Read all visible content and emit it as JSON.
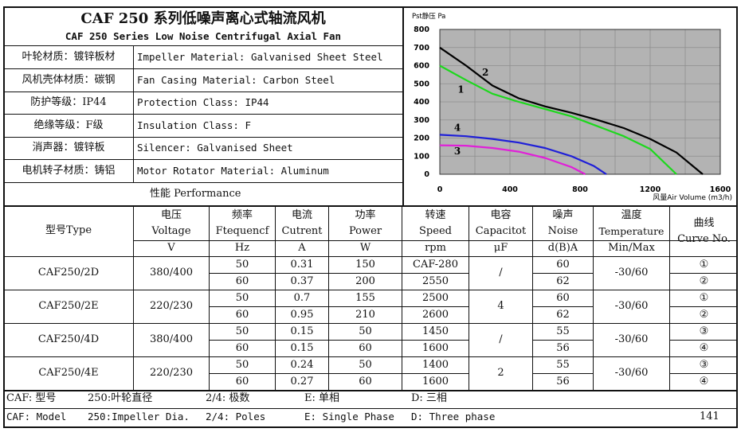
{
  "header": {
    "title_cn": "CAF 250 系列低噪声离心式轴流风机",
    "title_en": "CAF 250 Series Low Noise Centrifugal Axial Fan"
  },
  "specs": [
    {
      "cn": "叶轮材质：镀锌板材",
      "en": "Impeller Material: Galvanised Sheet Steel"
    },
    {
      "cn": "风机壳体材质：碳钢",
      "en": "Fan Casing Material: Carbon Steel"
    },
    {
      "cn": "防护等级：IP44",
      "en": "Protection Class: IP44"
    },
    {
      "cn": "绝缘等级：F级",
      "en": "Insulation Class: F"
    },
    {
      "cn": "消声器：镀锌板",
      "en": "Silencer: Galvanised Sheet"
    },
    {
      "cn": "电机转子材质：铸铝",
      "en": "Motor Rotator Material: Aluminum"
    }
  ],
  "performance_label": "性能  Performance",
  "table": {
    "headers": {
      "model": "型号Type",
      "voltage": {
        "cn": "电压",
        "en": "Voltage",
        "unit": "V"
      },
      "frequency": {
        "cn": "频率",
        "en": "Ftequencf",
        "unit": "Hz"
      },
      "current": {
        "cn": "电流",
        "en": "Cutrent",
        "unit": "A"
      },
      "power": {
        "cn": "功率",
        "en": "Power",
        "unit": "W"
      },
      "speed": {
        "cn": "转速",
        "en": "Speed",
        "unit": "rpm"
      },
      "capacitor": {
        "cn": "电容",
        "en": "Capacitot",
        "unit": "μF"
      },
      "noise": {
        "cn": "噪声",
        "en": "Noise",
        "unit": "d(B)A"
      },
      "temperature": {
        "cn": "温度",
        "en": "Temperature",
        "unit": "Min/Max"
      },
      "curve": {
        "cn": "曲线",
        "en": "Curve No."
      }
    },
    "groups": [
      {
        "model": "CAF250/2D",
        "voltage": "380/400",
        "capacitor": "/",
        "temperature": "-30/60",
        "rows": [
          {
            "freq": "50",
            "current": "0.31",
            "power": "150",
            "speed": "CAF-280",
            "noise": "60",
            "curve": "①"
          },
          {
            "freq": "60",
            "current": "0.37",
            "power": "200",
            "speed": "2550",
            "noise": "62",
            "curve": "②"
          }
        ]
      },
      {
        "model": "CAF250/2E",
        "voltage": "220/230",
        "capacitor": "4",
        "temperature": "-30/60",
        "rows": [
          {
            "freq": "50",
            "current": "0.7",
            "power": "155",
            "speed": "2500",
            "noise": "60",
            "curve": "①"
          },
          {
            "freq": "60",
            "current": "0.95",
            "power": "210",
            "speed": "2600",
            "noise": "62",
            "curve": "②"
          }
        ]
      },
      {
        "model": "CAF250/4D",
        "voltage": "380/400",
        "capacitor": "/",
        "temperature": "-30/60",
        "rows": [
          {
            "freq": "50",
            "current": "0.15",
            "power": "50",
            "speed": "1450",
            "noise": "55",
            "curve": "③"
          },
          {
            "freq": "60",
            "current": "0.15",
            "power": "60",
            "speed": "1600",
            "noise": "56",
            "curve": "④"
          }
        ]
      },
      {
        "model": "CAF250/4E",
        "voltage": "220/230",
        "capacitor": "2",
        "temperature": "-30/60",
        "rows": [
          {
            "freq": "50",
            "current": "0.24",
            "power": "50",
            "speed": "1400",
            "noise": "55",
            "curve": "③"
          },
          {
            "freq": "60",
            "current": "0.27",
            "power": "60",
            "speed": "1600",
            "noise": "56",
            "curve": "④"
          }
        ]
      }
    ]
  },
  "footer": {
    "cn": {
      "caf": "CAF: 型号",
      "dia": "250:叶轮直径",
      "poles": "2/4: 极数",
      "single": "E: 单相",
      "three": "D: 三相"
    },
    "en": {
      "caf": "CAF: Model",
      "dia": "250:Impeller Dia.",
      "poles": "2/4: Poles",
      "single": "E: Single Phase",
      "three": "D: Three phase"
    },
    "page_number": "141"
  },
  "chart_data": {
    "type": "line",
    "ylabel": "Pst静压 Pa",
    "xlabel": "风量Air Volume (m3/h)",
    "xlim": [
      0,
      1600
    ],
    "ylim": [
      0,
      800
    ],
    "x_ticks": [
      0,
      400,
      800,
      1200,
      1600
    ],
    "y_ticks": [
      0,
      100,
      200,
      300,
      400,
      500,
      600,
      700,
      800
    ],
    "grid": true,
    "background": "#b3b3b3",
    "series": [
      {
        "name": "1",
        "color": "#1dd81d",
        "points": [
          [
            0,
            600
          ],
          [
            150,
            520
          ],
          [
            300,
            445
          ],
          [
            450,
            400
          ],
          [
            600,
            360
          ],
          [
            750,
            320
          ],
          [
            900,
            265
          ],
          [
            1050,
            210
          ],
          [
            1200,
            140
          ],
          [
            1350,
            0
          ]
        ]
      },
      {
        "name": "2",
        "color": "#000000",
        "points": [
          [
            0,
            700
          ],
          [
            150,
            600
          ],
          [
            300,
            490
          ],
          [
            450,
            420
          ],
          [
            600,
            375
          ],
          [
            750,
            340
          ],
          [
            900,
            300
          ],
          [
            1050,
            255
          ],
          [
            1200,
            195
          ],
          [
            1350,
            120
          ],
          [
            1500,
            0
          ]
        ]
      },
      {
        "name": "3",
        "color": "#e020d8",
        "points": [
          [
            0,
            160
          ],
          [
            150,
            158
          ],
          [
            300,
            145
          ],
          [
            450,
            125
          ],
          [
            600,
            90
          ],
          [
            750,
            40
          ],
          [
            830,
            0
          ]
        ]
      },
      {
        "name": "4",
        "color": "#1f1fd8",
        "points": [
          [
            0,
            218
          ],
          [
            150,
            210
          ],
          [
            300,
            195
          ],
          [
            450,
            175
          ],
          [
            600,
            145
          ],
          [
            750,
            100
          ],
          [
            880,
            45
          ],
          [
            950,
            0
          ]
        ]
      }
    ],
    "labels": [
      {
        "text": "1",
        "x": 120,
        "y": 450
      },
      {
        "text": "2",
        "x": 260,
        "y": 545
      },
      {
        "text": "3",
        "x": 100,
        "y": 110
      },
      {
        "text": "4",
        "x": 100,
        "y": 240
      }
    ]
  }
}
